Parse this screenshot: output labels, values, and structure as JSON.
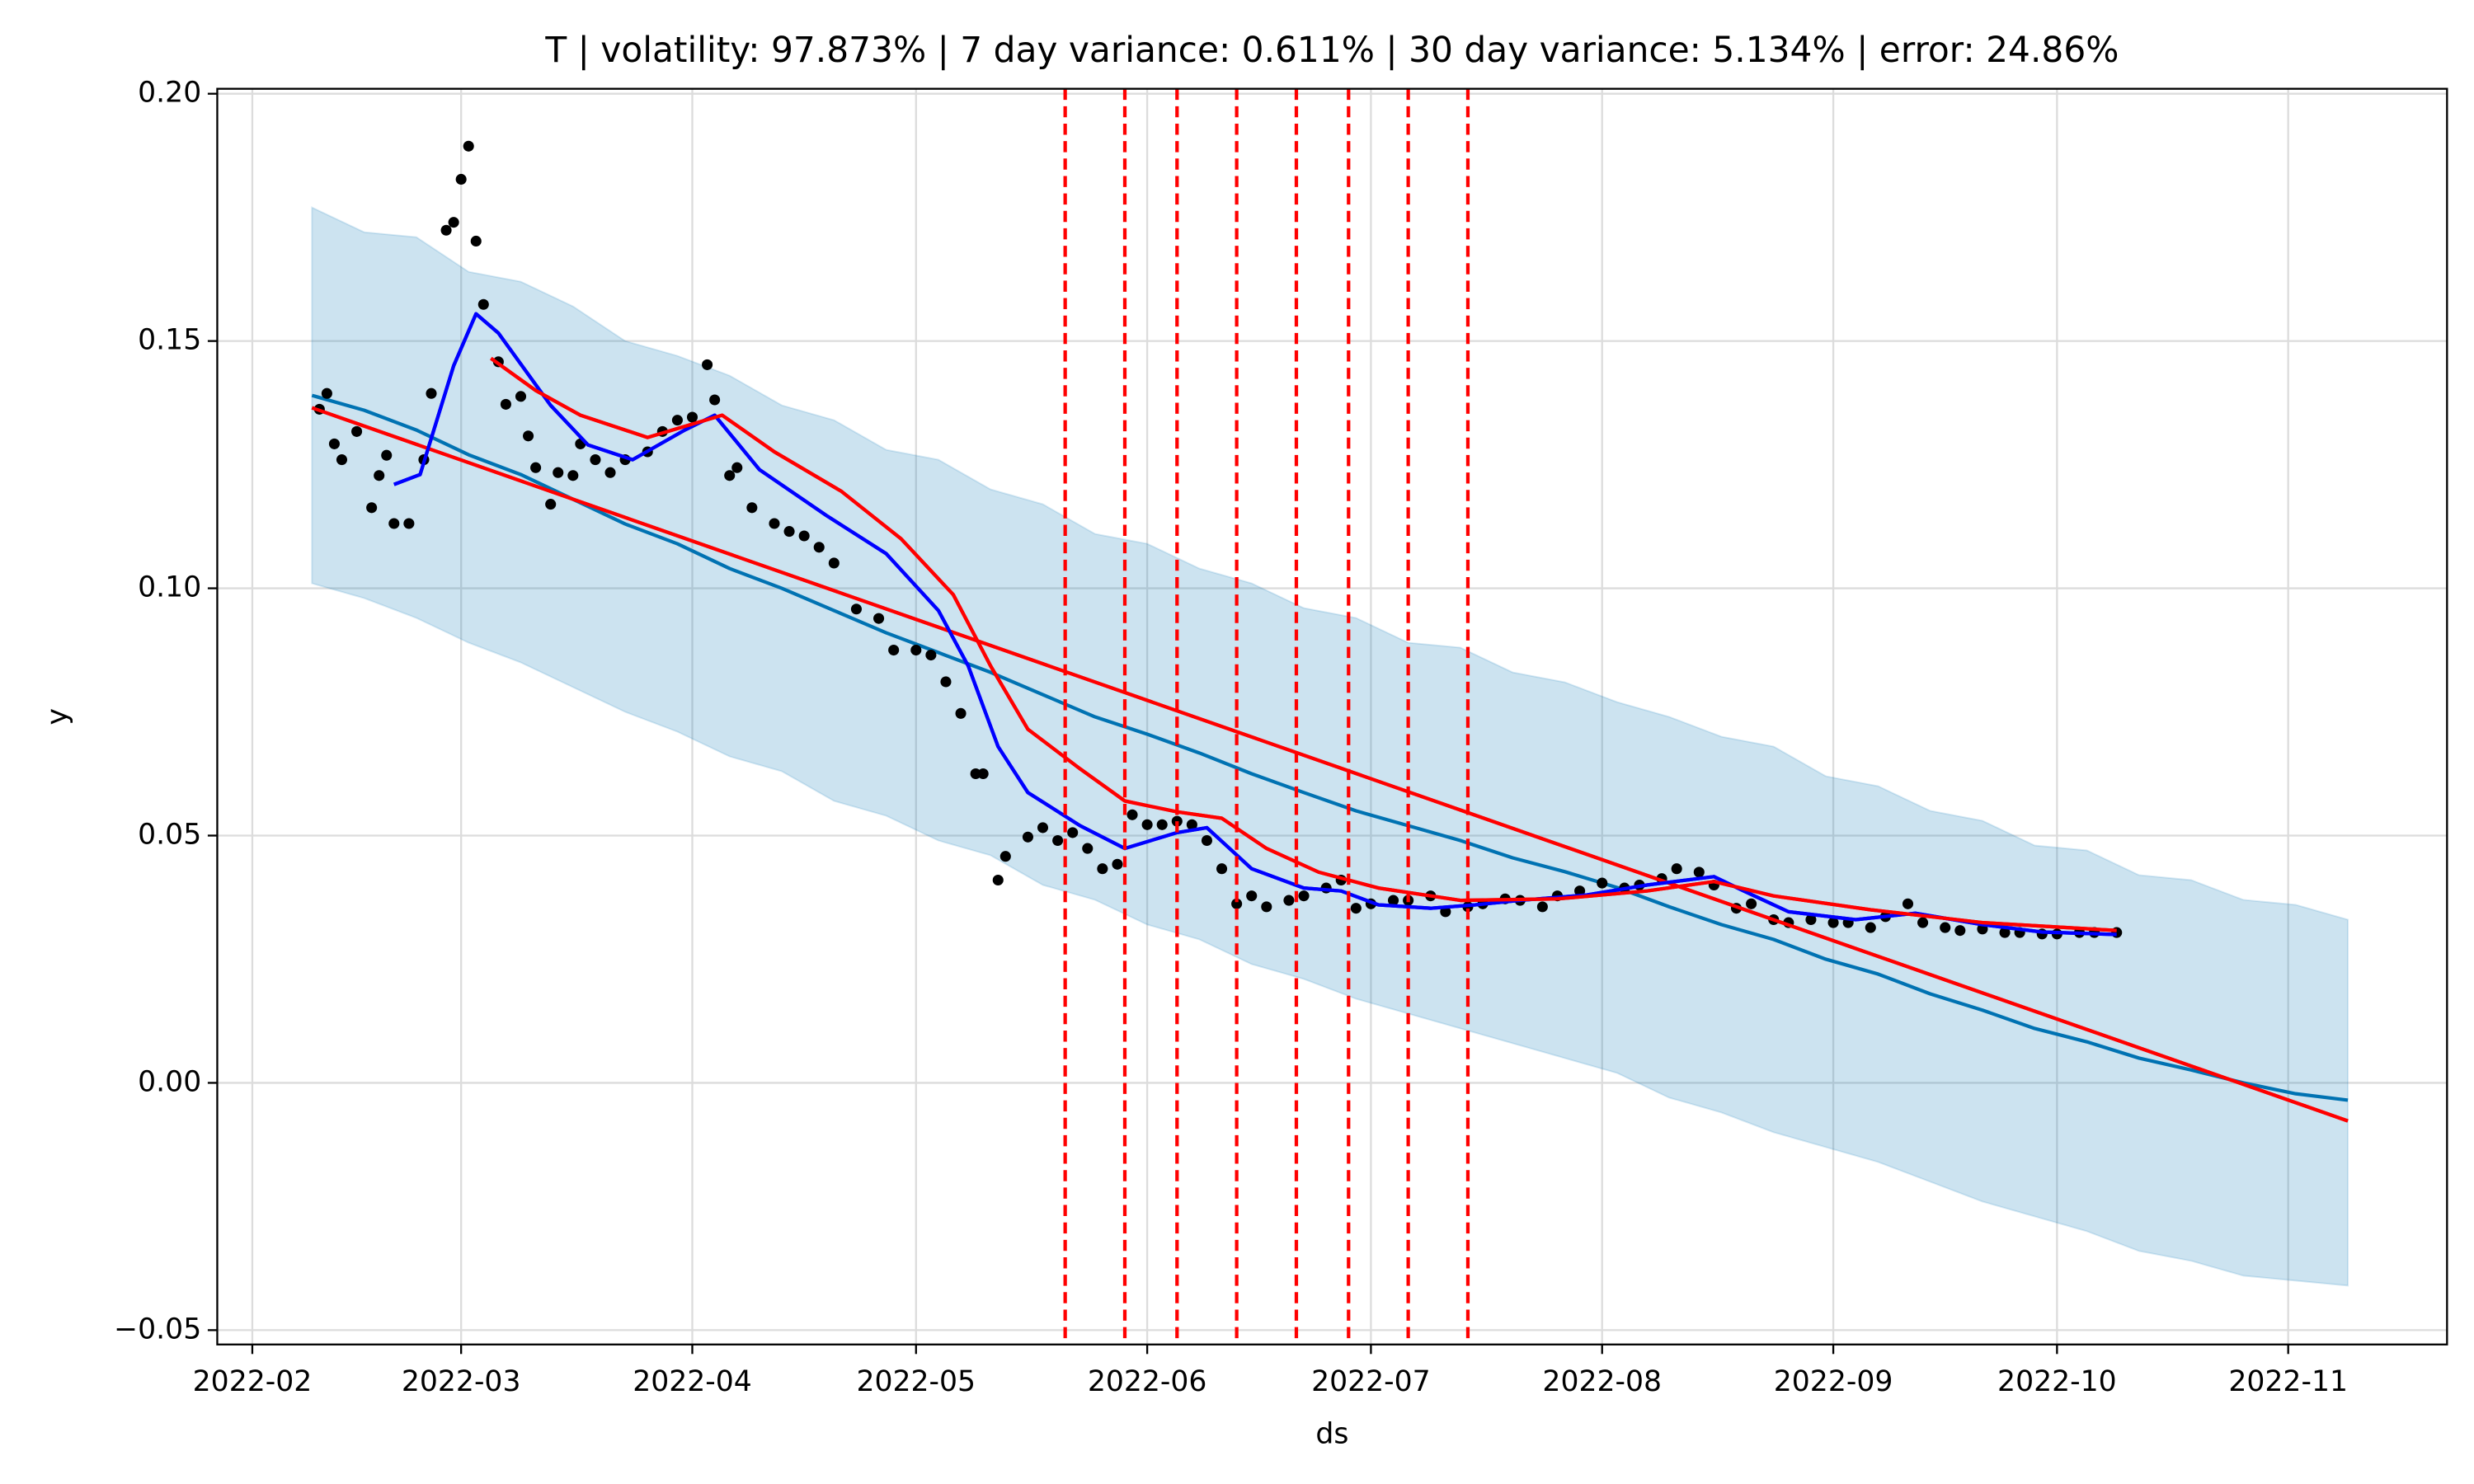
{
  "chart_data": {
    "type": "line",
    "title": "T | volatility: 97.873% | 7 day variance: 0.611% | 30 day variance: 5.134% | error: 24.86%",
    "xlabel": "ds",
    "ylabel": "y",
    "grid": true,
    "xlim": [
      19019.3,
      19318.3
    ],
    "ylim": [
      -0.0529,
      0.201
    ],
    "xticks": [
      {
        "value": 19024,
        "label": "2022-02"
      },
      {
        "value": 19052,
        "label": "2022-03"
      },
      {
        "value": 19083,
        "label": "2022-04"
      },
      {
        "value": 19113,
        "label": "2022-05"
      },
      {
        "value": 19144,
        "label": "2022-06"
      },
      {
        "value": 19174,
        "label": "2022-07"
      },
      {
        "value": 19205,
        "label": "2022-08"
      },
      {
        "value": 19236,
        "label": "2022-09"
      },
      {
        "value": 19266,
        "label": "2022-10"
      },
      {
        "value": 19297,
        "label": "2022-11"
      }
    ],
    "yticks": [
      {
        "value": 0.2,
        "label": "0.20"
      },
      {
        "value": 0.15,
        "label": "0.15"
      },
      {
        "value": 0.1,
        "label": "0.10"
      },
      {
        "value": 0.05,
        "label": "0.05"
      },
      {
        "value": 0,
        "label": "0.00"
      },
      {
        "value": -0.05,
        "label": "−0.05"
      }
    ],
    "series": [
      {
        "type": "band",
        "color": "#0072b2",
        "x": [
          19032,
          19039,
          19046,
          19053,
          19060,
          19067,
          19074,
          19081,
          19088,
          19095,
          19102,
          19109,
          19116,
          19123,
          19130,
          19137,
          19144,
          19151,
          19158,
          19165,
          19172,
          19179,
          19186,
          19193,
          19200,
          19207,
          19214,
          19221,
          19228,
          19235,
          19242,
          19249,
          19256,
          19263,
          19270,
          19277,
          19284,
          19291,
          19298,
          19305
        ],
        "upper": [
          0.177,
          0.172,
          0.171,
          0.164,
          0.162,
          0.157,
          0.15,
          0.147,
          0.143,
          0.137,
          0.134,
          0.128,
          0.126,
          0.12,
          0.117,
          0.111,
          0.109,
          0.104,
          0.101,
          0.096,
          0.094,
          0.089,
          0.088,
          0.083,
          0.081,
          0.077,
          0.074,
          0.07,
          0.068,
          0.062,
          0.06,
          0.055,
          0.053,
          0.048,
          0.047,
          0.042,
          0.041,
          0.037,
          0.036,
          0.033
        ],
        "lower": [
          0.101,
          0.098,
          0.094,
          0.089,
          0.085,
          0.08,
          0.075,
          0.071,
          0.066,
          0.063,
          0.057,
          0.054,
          0.049,
          0.046,
          0.04,
          0.037,
          0.032,
          0.029,
          0.024,
          0.021,
          0.017,
          0.014,
          0.011,
          0.008,
          0.005,
          0.002,
          -0.003,
          -0.006,
          -0.01,
          -0.013,
          -0.016,
          -0.02,
          -0.024,
          -0.027,
          -0.03,
          -0.034,
          -0.036,
          -0.039,
          -0.04,
          -0.041
        ]
      },
      {
        "type": "line",
        "color": "#0072b2",
        "x": [
          19032,
          19039,
          19046,
          19053,
          19060,
          19067,
          19074,
          19081,
          19088,
          19095,
          19102,
          19109,
          19116,
          19123,
          19130,
          19137,
          19144,
          19151,
          19158,
          19165,
          19172,
          19179,
          19186,
          19193,
          19200,
          19207,
          19214,
          19221,
          19228,
          19235,
          19242,
          19249,
          19256,
          19263,
          19270,
          19277,
          19284,
          19291,
          19298,
          19305
        ],
        "values": [
          0.139,
          0.136,
          0.132,
          0.127,
          0.123,
          0.118,
          0.113,
          0.109,
          0.104,
          0.1,
          0.0955,
          0.091,
          0.087,
          0.083,
          0.0785,
          0.074,
          0.0705,
          0.0667,
          0.0625,
          0.0587,
          0.055,
          0.052,
          0.049,
          0.0455,
          0.0427,
          0.0395,
          0.0356,
          0.032,
          0.029,
          0.025,
          0.022,
          0.018,
          0.0147,
          0.011,
          0.0083,
          0.005,
          0.0026,
          0.0,
          -0.0022,
          -0.0035
        ]
      },
      {
        "type": "scatter",
        "color": "#000000",
        "x": [
          19033,
          19034,
          19035,
          19036,
          19038,
          19040,
          19041,
          19042,
          19043,
          19045,
          19047,
          19048,
          19050,
          19051,
          19052,
          19053,
          19054,
          19055,
          19057,
          19058,
          19060,
          19061,
          19062,
          19064,
          19065,
          19067,
          19068,
          19070,
          19072,
          19074,
          19077,
          19079,
          19081,
          19083,
          19085,
          19086,
          19088,
          19089,
          19091,
          19094,
          19096,
          19098,
          19100,
          19102,
          19105,
          19108,
          19110,
          19113,
          19115,
          19117,
          19119,
          19121,
          19122,
          19124,
          19125,
          19128,
          19130,
          19132,
          19134,
          19136,
          19138,
          19140,
          19142,
          19144,
          19146,
          19148,
          19150,
          19152,
          19154,
          19156,
          19158,
          19160,
          19163,
          19165,
          19168,
          19170,
          19172,
          19174,
          19177,
          19179,
          19182,
          19184,
          19187,
          19189,
          19192,
          19194,
          19197,
          19199,
          19202,
          19205,
          19208,
          19210,
          19213,
          19215,
          19218,
          19220,
          19223,
          19225,
          19228,
          19230,
          19233,
          19236,
          19238,
          19241,
          19243,
          19246,
          19248,
          19251,
          19253,
          19256,
          19259,
          19261,
          19264,
          19266,
          19269,
          19271,
          19274
        ],
        "values": [
          0.1362,
          0.1394,
          0.1292,
          0.126,
          0.1317,
          0.1163,
          0.1228,
          0.1269,
          0.1131,
          0.1131,
          0.126,
          0.1394,
          0.1724,
          0.174,
          0.1827,
          0.1894,
          0.1702,
          0.1574,
          0.1458,
          0.1372,
          0.1388,
          0.1308,
          0.1244,
          0.117,
          0.1234,
          0.1228,
          0.1292,
          0.126,
          0.1234,
          0.126,
          0.1276,
          0.1317,
          0.134,
          0.1346,
          0.1452,
          0.1381,
          0.1228,
          0.1244,
          0.1163,
          0.1131,
          0.1115,
          0.1106,
          0.1083,
          0.1051,
          0.0958,
          0.0939,
          0.0875,
          0.0875,
          0.0865,
          0.0811,
          0.0747,
          0.0625,
          0.0625,
          0.041,
          0.0458,
          0.0497,
          0.0516,
          0.049,
          0.0506,
          0.0474,
          0.0433,
          0.0442,
          0.0542,
          0.0522,
          0.0522,
          0.0529,
          0.0522,
          0.049,
          0.0433,
          0.0362,
          0.0378,
          0.0356,
          0.0369,
          0.0378,
          0.0394,
          0.041,
          0.0353,
          0.0362,
          0.0369,
          0.0369,
          0.0378,
          0.0346,
          0.0356,
          0.0362,
          0.0372,
          0.0369,
          0.0356,
          0.0378,
          0.0388,
          0.0404,
          0.0394,
          0.04,
          0.0413,
          0.0433,
          0.0426,
          0.04,
          0.0353,
          0.0362,
          0.033,
          0.0324,
          0.033,
          0.0324,
          0.0324,
          0.0314,
          0.0336,
          0.0362,
          0.0324,
          0.0314,
          0.0308,
          0.0311,
          0.0304,
          0.0304,
          0.0301,
          0.0301,
          0.0304,
          0.0304,
          0.0304
        ]
      },
      {
        "type": "line",
        "color": "#ff0000",
        "x": [
          19032,
          19305
        ],
        "values": [
          0.1365,
          -0.0077
        ]
      },
      {
        "type": "line",
        "color": "#0000ff",
        "x": [
          19043,
          19046.5,
          19051,
          19054,
          19057,
          19064,
          19069,
          19075,
          19082,
          19086,
          19092,
          19101,
          19109,
          19116,
          19120,
          19124,
          19128,
          19135,
          19141,
          19148,
          19152,
          19158,
          19165,
          19170,
          19175,
          19182,
          19188,
          19194,
          19203,
          19211,
          19220,
          19224,
          19230,
          19239,
          19247,
          19256,
          19264,
          19274
        ],
        "values": [
          0.121,
          0.123,
          0.145,
          0.1555,
          0.1516,
          0.137,
          0.129,
          0.126,
          0.132,
          0.135,
          0.124,
          0.1147,
          0.107,
          0.0955,
          0.0843,
          0.068,
          0.0587,
          0.052,
          0.0474,
          0.0506,
          0.0516,
          0.0433,
          0.0394,
          0.0388,
          0.036,
          0.0353,
          0.036,
          0.0369,
          0.038,
          0.04,
          0.0417,
          0.0388,
          0.0346,
          0.033,
          0.0343,
          0.032,
          0.0305,
          0.03
        ]
      },
      {
        "type": "line",
        "color": "#ff0000",
        "x": [
          19056,
          19062,
          19068,
          19077,
          19087,
          19094,
          19103,
          19111,
          19118,
          19123,
          19128,
          19135,
          19141,
          19148,
          19154,
          19160,
          19167,
          19175,
          19186,
          19199,
          19211,
          19220,
          19228,
          19241,
          19256,
          19274
        ],
        "values": [
          0.1465,
          0.14,
          0.135,
          0.1305,
          0.135,
          0.1276,
          0.1196,
          0.11,
          0.0987,
          0.0843,
          0.0715,
          0.0635,
          0.057,
          0.0548,
          0.0535,
          0.0474,
          0.0426,
          0.0394,
          0.0369,
          0.0372,
          0.0388,
          0.0407,
          0.0378,
          0.035,
          0.0324,
          0.0308
        ]
      }
    ],
    "vlines": {
      "color": "#ff0000",
      "x": [
        19133,
        19141,
        19148,
        19156,
        19164,
        19171,
        19179,
        19187
      ]
    }
  }
}
